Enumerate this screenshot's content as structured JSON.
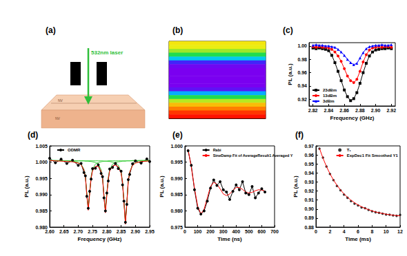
{
  "diagram": {
    "title": "(a)",
    "laser": "532nm laser",
    "labels": [
      "NV",
      "NV"
    ]
  },
  "chart_data": [
    {
      "type": "heatmap",
      "title": "(b)",
      "tick_labels": false,
      "zlim": [
        0,
        1
      ],
      "cells": [
        [
          0.68
        ],
        [
          0.66
        ],
        [
          0.6
        ],
        [
          0.5
        ],
        [
          0.35
        ],
        [
          0.1
        ],
        [
          0.02
        ],
        [
          0
        ],
        [
          0
        ],
        [
          0
        ],
        [
          0
        ],
        [
          0
        ],
        [
          0.05
        ],
        [
          0.3
        ],
        [
          0.5
        ],
        [
          0.62
        ],
        [
          0.75
        ],
        [
          0.85
        ],
        [
          0.95
        ],
        [
          1
        ]
      ]
    },
    {
      "type": "line",
      "title": "(c)",
      "xlabel": "Frequency (GHz)",
      "ylabel": "PL (a.u.)",
      "legend": "lower left",
      "grid": false,
      "xlim": [
        2.815,
        2.925
      ],
      "xticks": [
        2.82,
        2.84,
        2.86,
        2.88,
        {
          "value": 2.9,
          "label": "2.90"
        },
        2.92
      ],
      "ylim": [
        0.91,
        1.005
      ],
      "yticks": [
        0.92,
        0.94,
        0.96,
        0.98,
        {
          "value": 1,
          "label": "1.00"
        }
      ],
      "x": [
        2.82,
        2.824,
        2.828,
        2.832,
        2.836,
        2.84,
        2.844,
        2.848,
        2.852,
        2.856,
        2.86,
        2.864,
        2.868,
        2.872,
        2.876,
        2.88,
        2.884,
        2.888,
        2.892,
        2.896,
        2.9,
        2.904,
        2.908,
        2.912,
        2.916,
        2.92
      ],
      "series": [
        {
          "name": "23dBm",
          "color": "#000000",
          "marker": "square",
          "line_style": "solid",
          "values": [
            0.997,
            0.996,
            0.997,
            0.996,
            0.995,
            0.993,
            0.986,
            0.975,
            0.962,
            0.948,
            0.934,
            0.924,
            0.918,
            0.921,
            0.93,
            0.944,
            0.96,
            0.974,
            0.985,
            0.991,
            0.994,
            0.995,
            0.996,
            0.996,
            0.997,
            0.996
          ]
        },
        {
          "name": "13dBm",
          "color": "#ff0000",
          "marker": "circle",
          "line_style": "solid",
          "values": [
            0.999,
            0.998,
            0.999,
            0.998,
            0.998,
            0.997,
            0.995,
            0.991,
            0.985,
            0.977,
            0.966,
            0.955,
            0.948,
            0.945,
            0.95,
            0.962,
            0.976,
            0.987,
            0.994,
            0.997,
            0.998,
            0.999,
            0.998,
            0.999,
            0.999,
            0.998
          ]
        },
        {
          "name": "3dBm",
          "color": "#0000ff",
          "marker": "triangle",
          "line_style": "solid",
          "values": [
            1.001,
            1.002,
            1.001,
            1.001,
            1,
            1,
            0.999,
            0.998,
            0.995,
            0.991,
            0.986,
            0.98,
            0.975,
            0.972,
            0.974,
            0.982,
            0.99,
            0.996,
            0.999,
            1,
            1.001,
            1.001,
            1.002,
            1.001,
            1.001,
            1.002
          ]
        }
      ]
    },
    {
      "type": "line",
      "title": "(d)",
      "xlabel": "Frequency (GHz)",
      "ylabel": "PL (a.u.)",
      "legend": "upper left",
      "grid": false,
      "xlim": [
        2.6,
        2.95
      ],
      "xticks": [
        {
          "value": 2.6,
          "label": "2.60"
        },
        2.65,
        {
          "value": 2.7,
          "label": "2.70"
        },
        2.75,
        {
          "value": 2.8,
          "label": "2.80"
        },
        2.85,
        {
          "value": 2.9,
          "label": "2.90"
        },
        2.95
      ],
      "ylim": [
        0.98,
        1.005
      ],
      "yticks": [
        {
          "value": 0.98,
          "label": "0.980"
        },
        0.985,
        {
          "value": 0.99,
          "label": "0.990"
        },
        0.995,
        {
          "value": 1,
          "label": "1.000"
        },
        1.005
      ],
      "x": [
        2.6,
        2.62,
        2.64,
        2.66,
        2.68,
        2.7,
        2.71,
        2.72,
        2.725,
        2.73,
        2.735,
        2.74,
        2.745,
        2.75,
        2.76,
        2.77,
        2.78,
        2.785,
        2.79,
        2.795,
        2.8,
        2.805,
        2.81,
        2.82,
        2.83,
        2.84,
        2.85,
        2.855,
        2.86,
        2.865,
        2.87,
        2.875,
        2.88,
        2.89,
        2.9,
        2.92,
        2.94,
        2.95
      ],
      "series": [
        {
          "name": "ODMR",
          "color": "#000000",
          "marker": "circle",
          "line_style": "solid",
          "values": [
            1.0012,
            0.9998,
            1.0009,
            0.9996,
            1.0006,
            0.999,
            0.9996,
            0.9968,
            0.9958,
            0.9895,
            0.9858,
            0.991,
            0.9948,
            0.998,
            0.9981,
            0.9992,
            0.9965,
            0.9955,
            0.989,
            0.985,
            0.9905,
            0.9942,
            0.9979,
            0.9984,
            0.9996,
            0.998,
            0.9972,
            0.993,
            0.988,
            0.9815,
            0.987,
            0.9946,
            0.9962,
            0.9995,
            1.0004,
            0.9997,
            1.001,
            1.0002
          ]
        },
        {
          "color": "#33cc33",
          "marker": "none",
          "line_style": "solid",
          "values": [
            1.0005,
            1.0004,
            1.0004,
            1.0004,
            1.0003,
            0.9999,
            0.9994,
            0.9978,
            0.9956,
            0.9906,
            0.9855,
            0.9906,
            0.9956,
            0.9978,
            0.9994,
            0.9999,
            1.0001,
            1.0002,
            1.0003,
            1.0003,
            1.0003,
            1.0004,
            1.0004,
            1.0004,
            1.0004,
            1.0004,
            1.0004,
            1.0004,
            1.0004,
            1.0004,
            1.0004,
            1.0004,
            1.0004,
            1.0005,
            1.0005,
            1.0005,
            1.0005,
            1.0005
          ]
        },
        {
          "color": "#33cc33",
          "marker": "none",
          "line_style": "solid",
          "values": [
            1.0005,
            1.0005,
            1.0004,
            1.0004,
            1.0004,
            1.0004,
            1.0004,
            1.0004,
            1.0003,
            1.0003,
            1.0003,
            1.0002,
            1.0002,
            1.0001,
            0.9999,
            0.9994,
            0.9977,
            0.9953,
            0.9901,
            0.9848,
            0.9901,
            0.9953,
            0.9977,
            0.9994,
            0.9999,
            1.0001,
            1.0002,
            1.0003,
            1.0003,
            1.0003,
            1.0004,
            1.0004,
            1.0004,
            1.0004,
            1.0004,
            1.0005,
            1.0005,
            1.0005
          ]
        },
        {
          "color": "#33cc33",
          "marker": "none",
          "line_style": "solid",
          "values": [
            1.0005,
            1.0005,
            1.0005,
            1.0004,
            1.0004,
            1.0004,
            1.0004,
            1.0004,
            1.0004,
            1.0004,
            1.0004,
            1.0004,
            1.0004,
            1.0004,
            1.0004,
            1.0004,
            1.0004,
            1.0004,
            1.0003,
            1.0003,
            1.0003,
            1.0002,
            1.0002,
            1,
            0.9998,
            0.9991,
            0.997,
            0.9941,
            0.9877,
            0.9812,
            0.9877,
            0.9941,
            0.997,
            0.9991,
            0.9998,
            1.0002,
            1.0003,
            1.0004
          ]
        },
        {
          "color": "#ff0000",
          "marker": "none",
          "line_style": "solid",
          "values": [
            1.0005,
            1.0004,
            1.0003,
            1.0002,
            1.0001,
            0.9997,
            0.9992,
            0.9976,
            0.9953,
            0.9903,
            0.9852,
            0.9902,
            0.9952,
            0.9973,
            0.9987,
            0.9987,
            0.9972,
            0.9949,
            0.9897,
            0.9844,
            0.9897,
            0.9949,
            0.9973,
            0.9988,
            0.9991,
            0.9986,
            0.9966,
            0.9938,
            0.9874,
            0.9809,
            0.9875,
            0.994,
            0.9969,
            0.999,
            0.9997,
            1.0002,
            1.0003,
            1.0004
          ]
        }
      ]
    },
    {
      "type": "line",
      "title": "(e)",
      "xlabel": "Time (ns)",
      "ylabel": "PL (a.u.)",
      "legend": "upper right",
      "grid": false,
      "xlim": [
        0,
        700
      ],
      "xticks": [
        0,
        100,
        200,
        300,
        400,
        500,
        600,
        700
      ],
      "ylim": [
        0.975,
        1
      ],
      "yticks": [
        0.975,
        {
          "value": 0.98,
          "label": "0.980"
        },
        0.985,
        {
          "value": 0.99,
          "label": "0.990"
        },
        0.995,
        {
          "value": 1,
          "label": "1.000"
        }
      ],
      "x": [
        25,
        50,
        75,
        100,
        125,
        150,
        175,
        200,
        225,
        250,
        275,
        300,
        325,
        350,
        375,
        400,
        425,
        450,
        475,
        500,
        525,
        550,
        575,
        600,
        625
      ],
      "series": [
        {
          "name": "Rabi",
          "color": "#000000",
          "marker": "circle",
          "line_style": "solid",
          "values": [
            0.9985,
            0.994,
            0.9865,
            0.9808,
            0.979,
            0.98,
            0.983,
            0.987,
            0.9895,
            0.9878,
            0.989,
            0.9865,
            0.9858,
            0.9835,
            0.986,
            0.988,
            0.9865,
            0.989,
            0.9855,
            0.985,
            0.9875,
            0.984,
            0.9855,
            0.9868,
            0.9858
          ]
        },
        {
          "name": "SineDamp Fit of AverageResult1 Averaged Y",
          "color": "#ff0000",
          "marker": "none",
          "line_style": "solid",
          "values": [
            0.999,
            0.9935,
            0.987,
            0.9815,
            0.979,
            0.9805,
            0.984,
            0.9875,
            0.9888,
            0.9882,
            0.9868,
            0.9852,
            0.9847,
            0.9852,
            0.9863,
            0.9872,
            0.9872,
            0.9866,
            0.9858,
            0.9855,
            0.9857,
            0.9862,
            0.9865,
            0.9864,
            0.9861
          ]
        }
      ]
    },
    {
      "type": "line",
      "title": "(f)",
      "xlabel": "Time (ms)",
      "ylabel": "PL (a.u.)",
      "legend": "upper right",
      "grid": false,
      "xlim": [
        0,
        12
      ],
      "xticks": [
        0,
        2,
        4,
        6,
        8,
        10,
        12
      ],
      "ylim": [
        0.88,
        0.97
      ],
      "yticks": [
        0.88,
        0.89,
        {
          "value": 0.9,
          "label": "0.90"
        },
        0.91,
        0.92,
        0.93,
        0.94,
        0.95,
        0.96,
        0.97
      ],
      "x": [
        0.5,
        1,
        1.5,
        2,
        2.5,
        3,
        3.5,
        4,
        4.5,
        5,
        5.5,
        6,
        6.5,
        7,
        7.5,
        8,
        8.5,
        9,
        9.5,
        10,
        10.5,
        11,
        11.5,
        12
      ],
      "series": [
        {
          "name": "T₁",
          "color": "#000000",
          "marker": "circle",
          "line_style": "none",
          "values": [
            0.967,
            0.957,
            0.9472,
            0.939,
            0.932,
            0.9255,
            0.9208,
            0.916,
            0.9125,
            0.9088,
            0.906,
            0.904,
            0.9018,
            0.901,
            0.899,
            0.8975,
            0.8965,
            0.8958,
            0.8948,
            0.894,
            0.8938,
            0.893,
            0.8925,
            0.8935
          ]
        },
        {
          "name": "ExpDec1 Fit Smoothed Y1",
          "color": "#ff0000",
          "marker": "none",
          "line_style": "solid",
          "values": [
            0.9673,
            0.9565,
            0.9471,
            0.9391,
            0.9322,
            0.9263,
            0.9212,
            0.9168,
            0.913,
            0.9098,
            0.907,
            0.9046,
            0.9026,
            0.9008,
            0.8993,
            0.898,
            0.8968,
            0.8959,
            0.8951,
            0.8943,
            0.8937,
            0.8932,
            0.8928,
            0.8924
          ]
        }
      ]
    }
  ]
}
